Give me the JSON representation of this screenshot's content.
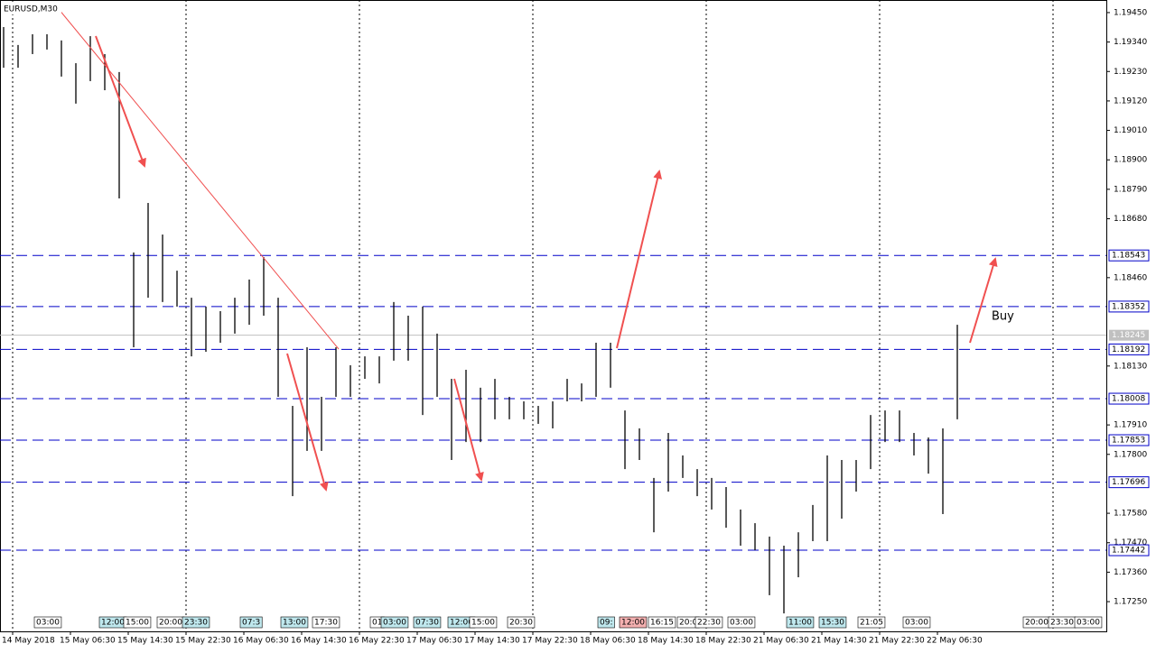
{
  "chart_data": {
    "type": "ohlc",
    "title": "EURUSD,M30",
    "high": [
      1.19396,
      1.19329,
      1.19369,
      1.19369,
      1.19346,
      1.19261,
      1.19362,
      1.19295,
      1.19228,
      1.18554,
      1.18739,
      1.18621,
      1.18486,
      1.18385,
      1.18352,
      1.18335,
      1.18385,
      1.18453,
      1.18537,
      1.18385,
      1.17981,
      1.182,
      1.18015,
      1.182,
      1.18133,
      1.18166,
      1.18166,
      1.18369,
      1.18318,
      1.18352,
      1.18251,
      1.18082,
      1.18116,
      1.18049,
      1.18082,
      1.18015,
      1.17998,
      1.17981,
      1.17998,
      1.18082,
      1.18065,
      1.18217,
      1.18217,
      1.17964,
      1.17897,
      1.17712,
      1.1788,
      1.17796,
      1.17745,
      1.17712,
      1.17678,
      1.17594,
      1.17543,
      1.17493,
      1.17459,
      1.17509,
      1.17611,
      1.17796,
      1.17779,
      1.17779,
      1.17947,
      1.17964,
      1.17964,
      1.1788,
      1.17863,
      1.17897,
      1.18284
    ],
    "low": [
      1.19244,
      1.19244,
      1.19295,
      1.19312,
      1.19211,
      1.1911,
      1.19194,
      1.1916,
      1.18756,
      1.182,
      1.18385,
      1.18369,
      1.18352,
      1.18166,
      1.18183,
      1.18217,
      1.18251,
      1.18284,
      1.18318,
      1.18015,
      1.17644,
      1.17813,
      1.17813,
      1.18015,
      1.18015,
      1.18082,
      1.18065,
      1.1815,
      1.1815,
      1.17947,
      1.18015,
      1.17779,
      1.17846,
      1.17846,
      1.17931,
      1.17931,
      1.17931,
      1.17914,
      1.17897,
      1.17998,
      1.17998,
      1.18015,
      1.18049,
      1.17745,
      1.17779,
      1.17509,
      1.17661,
      1.17712,
      1.17644,
      1.17594,
      1.17526,
      1.17459,
      1.17442,
      1.17274,
      1.17206,
      1.17341,
      1.17476,
      1.17476,
      1.1756,
      1.17661,
      1.17745,
      1.17846,
      1.17846,
      1.17796,
      1.17728,
      1.17577,
      1.17931
    ],
    "color": "#000000",
    "ylim": [
      1.17139,
      1.19497
    ],
    "yticks": [
      {
        "value": 1.1945,
        "label": "1.19450"
      },
      {
        "value": 1.1934,
        "label": "1.19340"
      },
      {
        "value": 1.1923,
        "label": "1.19230"
      },
      {
        "value": 1.1912,
        "label": "1.19120"
      },
      {
        "value": 1.1901,
        "label": "1.19010"
      },
      {
        "value": 1.189,
        "label": "1.18900"
      },
      {
        "value": 1.1879,
        "label": "1.18790"
      },
      {
        "value": 1.1868,
        "label": "1.18680"
      },
      {
        "value": 1.1846,
        "label": "1.18460"
      },
      {
        "value": 1.1813,
        "label": "1.18130"
      },
      {
        "value": 1.1791,
        "label": "1.17910"
      },
      {
        "value": 1.178,
        "label": "1.17800"
      },
      {
        "value": 1.1758,
        "label": "1.17580"
      },
      {
        "value": 1.1747,
        "label": "1.17470"
      },
      {
        "value": 1.1736,
        "label": "1.17360"
      },
      {
        "value": 1.1725,
        "label": "1.17250"
      }
    ],
    "levels": [
      {
        "value": 1.18543,
        "label": "1.18543"
      },
      {
        "value": 1.18352,
        "label": "1.18352"
      },
      {
        "value": 1.18192,
        "label": "1.18192"
      },
      {
        "value": 1.18008,
        "label": "1.18008"
      },
      {
        "value": 1.17853,
        "label": "1.17853"
      },
      {
        "value": 1.17696,
        "label": "1.17696"
      },
      {
        "value": 1.17442,
        "label": "1.17442"
      }
    ],
    "level_color": "#0000c8",
    "current_price": {
      "value": 1.18245,
      "label": "1.18245"
    },
    "x_labels": [
      "14 May 2018",
      "15 May 06:30",
      "15 May 14:30",
      "15 May 22:30",
      "16 May 06:30",
      "16 May 14:30",
      "16 May 22:30",
      "17 May 06:30",
      "17 May 14:30",
      "17 May 22:30",
      "18 May 06:30",
      "18 May 14:30",
      "18 May 22:30",
      "21 May 06:30",
      "21 May 14:30",
      "21 May 22:30",
      "22 May 06:30"
    ],
    "session_labels": [
      "03:00",
      "12:00",
      "15:00",
      "20:00",
      "23:30",
      "07:3",
      "13:00",
      "17:30",
      "01",
      "03:00",
      "07:30",
      "12:00",
      "15:00",
      "20:30",
      "09:",
      "12:00",
      "16:15",
      "20:0",
      "22:30",
      "03:00",
      "11:00",
      "15:30",
      "21:05",
      "03:00",
      "20:00",
      "23:30",
      "03:00"
    ],
    "annotation": "Buy",
    "annotation_color": "#f05050"
  }
}
